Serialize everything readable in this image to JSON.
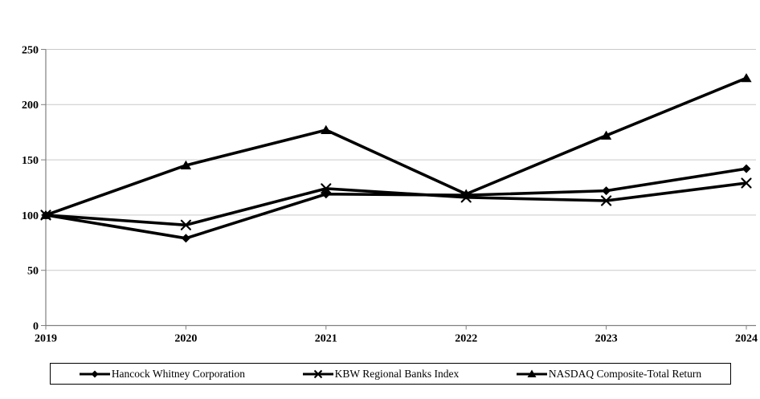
{
  "chart": {
    "background": "#ffffff",
    "axis_color": "#808080",
    "gridline_color": "#c9c9c9",
    "series_color": "#000000",
    "text_color": "#000000"
  },
  "chart_data": {
    "type": "line",
    "title": "",
    "xlabel": "",
    "ylabel": "",
    "categories": [
      "2019",
      "2020",
      "2021",
      "2022",
      "2023",
      "2024"
    ],
    "y_ticks": [
      "0",
      "50",
      "100",
      "150",
      "200",
      "250"
    ],
    "ylim": [
      0,
      250
    ],
    "grid": "horizontal",
    "legend_position": "bottom",
    "series": [
      {
        "name": "Hancock Whitney Corporation",
        "marker": "diamond",
        "color": "#000000",
        "values": [
          100,
          79,
          119,
          118,
          122,
          142
        ]
      },
      {
        "name": "KBW Regional Banks Index",
        "marker": "x",
        "color": "#000000",
        "values": [
          100,
          91,
          124,
          116,
          113,
          129
        ]
      },
      {
        "name": "NASDAQ Composite-Total Return",
        "marker": "triangle",
        "color": "#000000",
        "values": [
          100,
          145,
          177,
          119,
          172,
          224
        ]
      }
    ]
  }
}
